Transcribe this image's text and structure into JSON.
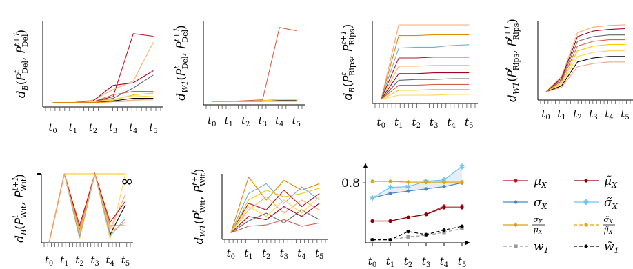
{
  "chart_data": [
    {
      "type": "line",
      "ylabel": "d_B(P^t_Del, P^{t+1}_Del)",
      "ylabel_parts": {
        "fn": "d",
        "sub": "B",
        "sym": "P",
        "name": "Del",
        "t0": "t",
        "t1": "t+1"
      },
      "x": [
        "t0",
        "t1",
        "t2",
        "t3",
        "t4",
        "t5"
      ],
      "ylim": [
        0,
        1
      ],
      "series": [
        {
          "values": [
            0.05,
            0.05,
            0.06,
            0.12,
            0.85,
            0.82
          ]
        },
        {
          "values": [
            0.05,
            0.05,
            0.08,
            0.2,
            0.3,
            0.75
          ]
        },
        {
          "values": [
            0.05,
            0.05,
            0.07,
            0.25,
            0.28,
            0.42
          ]
        },
        {
          "values": [
            0.05,
            0.05,
            0.06,
            0.1,
            0.22,
            0.37
          ]
        },
        {
          "values": [
            0.05,
            0.05,
            0.06,
            0.14,
            0.18,
            0.18
          ]
        },
        {
          "values": [
            0.05,
            0.05,
            0.05,
            0.08,
            0.14,
            0.16
          ]
        },
        {
          "values": [
            0.05,
            0.05,
            0.06,
            0.09,
            0.13,
            0.12
          ]
        },
        {
          "values": [
            0.05,
            0.05,
            0.05,
            0.07,
            0.1,
            0.1
          ]
        },
        {
          "values": [
            0.05,
            0.05,
            0.05,
            0.06,
            0.08,
            0.09
          ]
        },
        {
          "values": [
            0.05,
            0.05,
            0.05,
            0.06,
            0.07,
            0.07
          ]
        }
      ]
    },
    {
      "type": "line",
      "ylabel": "d_W1(P^t_Del, P^{t+1}_Del)",
      "ylabel_parts": {
        "fn": "d",
        "sub": "W1",
        "sym": "P",
        "name": "Del",
        "t0": "t",
        "t1": "t+1"
      },
      "x": [
        "t0",
        "t1",
        "t2",
        "t3",
        "t4",
        "t5"
      ],
      "ylim": [
        0,
        1
      ],
      "series": [
        {
          "values": [
            0.04,
            0.04,
            0.05,
            0.06,
            0.92,
            0.88
          ]
        },
        {
          "values": [
            0.04,
            0.04,
            0.04,
            0.05,
            0.07,
            0.06
          ]
        },
        {
          "values": [
            0.04,
            0.04,
            0.04,
            0.04,
            0.06,
            0.06
          ]
        },
        {
          "values": [
            0.04,
            0.04,
            0.04,
            0.04,
            0.05,
            0.05
          ]
        },
        {
          "values": [
            0.04,
            0.04,
            0.04,
            0.04,
            0.04,
            0.04
          ]
        }
      ]
    },
    {
      "type": "line",
      "ylabel": "d_B(P^t_Rips, P^{t+1}_Rips)",
      "ylabel_parts": {
        "fn": "d",
        "sub": "B",
        "sym": "P",
        "name": "Rips",
        "t0": "t",
        "t1": "t+1"
      },
      "x": [
        "t0",
        "t1",
        "t2",
        "t3",
        "t4",
        "t5"
      ],
      "ylim": [
        0,
        1
      ],
      "series": [
        {
          "values": [
            0.05,
            0.95,
            0.95,
            0.95,
            0.95,
            0.95
          ]
        },
        {
          "values": [
            0.05,
            0.82,
            0.82,
            0.83,
            0.83,
            0.83
          ]
        },
        {
          "values": [
            0.05,
            0.67,
            0.68,
            0.68,
            0.7,
            0.71
          ]
        },
        {
          "values": [
            0.05,
            0.55,
            0.55,
            0.56,
            0.56,
            0.56
          ]
        },
        {
          "values": [
            0.05,
            0.45,
            0.45,
            0.46,
            0.46,
            0.46
          ]
        },
        {
          "values": [
            0.05,
            0.36,
            0.36,
            0.37,
            0.37,
            0.37
          ]
        },
        {
          "values": [
            0.05,
            0.28,
            0.29,
            0.29,
            0.3,
            0.3
          ]
        },
        {
          "values": [
            0.05,
            0.22,
            0.22,
            0.23,
            0.23,
            0.23
          ]
        },
        {
          "values": [
            0.05,
            0.16,
            0.16,
            0.17,
            0.17,
            0.17
          ]
        },
        {
          "values": [
            0.05,
            0.1,
            0.1,
            0.1,
            0.11,
            0.11
          ]
        }
      ]
    },
    {
      "type": "line",
      "ylabel": "d_W1(P^t_Rips, P^{t+1}_Rips)",
      "ylabel_parts": {
        "fn": "d",
        "sub": "W1",
        "sym": "P",
        "name": "Rips",
        "t0": "t",
        "t1": "t+1"
      },
      "x": [
        "t0",
        "t1",
        "t2",
        "t3",
        "t4",
        "t5"
      ],
      "ylim": [
        0,
        1
      ],
      "series": [
        {
          "values": [
            0.1,
            0.3,
            0.85,
            0.92,
            0.94,
            0.95
          ]
        },
        {
          "values": [
            0.1,
            0.28,
            0.8,
            0.87,
            0.89,
            0.9
          ]
        },
        {
          "values": [
            0.1,
            0.26,
            0.74,
            0.8,
            0.82,
            0.82
          ]
        },
        {
          "values": [
            0.1,
            0.24,
            0.68,
            0.74,
            0.76,
            0.76
          ]
        },
        {
          "values": [
            0.1,
            0.22,
            0.62,
            0.68,
            0.7,
            0.7
          ]
        },
        {
          "values": [
            0.1,
            0.2,
            0.55,
            0.6,
            0.62,
            0.62
          ]
        },
        {
          "values": [
            0.1,
            0.18,
            0.48,
            0.53,
            0.55,
            0.55
          ]
        },
        {
          "values": [
            0.1,
            0.16,
            0.42,
            0.46,
            0.48,
            0.48
          ]
        }
      ]
    },
    {
      "type": "line",
      "ylabel": "d_B(P^t_Wit, P^{t+1}_Wit)",
      "ylabel_parts": {
        "fn": "d",
        "sub": "B",
        "sym": "P",
        "name": "Wit",
        "t0": "t",
        "t1": "t+1"
      },
      "annotation": "∞",
      "x": [
        "t0",
        "t1",
        "t2",
        "t3",
        "t4",
        "t5"
      ],
      "ylim": [
        0,
        1
      ],
      "series": [
        {
          "values": [
            0.0,
            1.0,
            1.0,
            1.0,
            1.0,
            1.0
          ]
        },
        {
          "values": [
            0.0,
            1.0,
            0.05,
            1.0,
            0.05,
            1.0
          ]
        },
        {
          "values": [
            0.0,
            1.0,
            0.1,
            1.0,
            0.12,
            0.55
          ]
        },
        {
          "values": [
            0.0,
            1.0,
            0.15,
            1.0,
            0.2,
            0.7
          ]
        },
        {
          "values": [
            0.0,
            1.0,
            0.2,
            1.0,
            0.25,
            0.25
          ]
        },
        {
          "values": [
            0.0,
            1.0,
            0.08,
            1.0,
            0.1,
            0.35
          ]
        },
        {
          "values": [
            0.0,
            1.0,
            0.25,
            1.0,
            0.3,
            0.6
          ]
        },
        {
          "values": [
            0.0,
            1.0,
            0.12,
            1.0,
            0.15,
            0.3
          ]
        }
      ]
    },
    {
      "type": "line",
      "ylabel": "d_W1(P^t_Wit, P^{t+1}_Wit)",
      "ylabel_parts": {
        "fn": "d",
        "sub": "W1",
        "sym": "P",
        "name": "Wit",
        "t0": "t",
        "t1": "t+1"
      },
      "x": [
        "t0",
        "t1",
        "t2",
        "t3",
        "t4",
        "t5"
      ],
      "ylim": [
        0,
        1
      ],
      "series": [
        {
          "values": [
            0.1,
            0.95,
            0.6,
            0.9,
            0.75,
            0.85
          ]
        },
        {
          "values": [
            0.1,
            0.7,
            0.85,
            0.55,
            0.8,
            0.6
          ]
        },
        {
          "values": [
            0.1,
            0.55,
            0.45,
            0.75,
            0.5,
            0.7
          ]
        },
        {
          "values": [
            0.1,
            0.45,
            0.65,
            0.4,
            0.6,
            0.45
          ]
        },
        {
          "values": [
            0.1,
            0.35,
            0.3,
            0.5,
            0.35,
            0.55
          ]
        },
        {
          "values": [
            0.1,
            0.28,
            0.4,
            0.25,
            0.45,
            0.3
          ]
        },
        {
          "values": [
            0.1,
            0.2,
            0.22,
            0.3,
            0.2,
            0.25
          ]
        },
        {
          "values": [
            0.1,
            0.6,
            0.75,
            0.65,
            0.7,
            0.78
          ]
        },
        {
          "values": [
            0.1,
            0.5,
            0.35,
            0.6,
            0.4,
            0.65
          ]
        }
      ]
    },
    {
      "type": "line",
      "x": [
        "t0",
        "t1",
        "t2",
        "t3",
        "t4",
        "t5"
      ],
      "ylim": [
        0,
        1.05
      ],
      "yticks": [
        0.8
      ],
      "series": [
        {
          "name": "μX",
          "values": [
            0.29,
            0.29,
            0.34,
            0.38,
            0.49,
            0.49
          ]
        },
        {
          "name": "μ̃X",
          "values": [
            0.29,
            0.29,
            0.34,
            0.38,
            0.47,
            0.47
          ]
        },
        {
          "name": "σX",
          "values": [
            0.6,
            0.66,
            0.69,
            0.72,
            0.75,
            0.8
          ]
        },
        {
          "name": "σ̃X",
          "values": [
            0.6,
            0.74,
            0.75,
            0.82,
            0.84,
            1.02
          ]
        },
        {
          "name": "σX/μX",
          "values": [
            0.82,
            0.82,
            0.81,
            0.81,
            0.81,
            0.81
          ]
        },
        {
          "name": "σ̃X/μ̃X",
          "values": [
            0.82,
            0.82,
            0.81,
            0.81,
            0.81,
            0.81
          ]
        },
        {
          "name": "w1",
          "values": [
            0.04,
            0.04,
            0.08,
            0.1,
            0.14,
            0.19
          ]
        },
        {
          "name": "w̃1",
          "values": [
            0.04,
            0.04,
            0.15,
            0.11,
            0.17,
            0.22
          ]
        }
      ]
    }
  ],
  "legend": [
    {
      "label": "μX",
      "base": "μ",
      "sub": "X",
      "color": "#b2182b",
      "marker": "circle",
      "dash": false
    },
    {
      "label": "μ̃X",
      "base": "μ̃",
      "sub": "X",
      "color": "#8b0000",
      "marker": "circle",
      "dash": false
    },
    {
      "label": "σX",
      "base": "σ",
      "sub": "X",
      "color": "#4a86c5",
      "marker": "circle",
      "dash": false
    },
    {
      "label": "σ̃X",
      "base": "σ̃",
      "sub": "X",
      "color": "#6ec3ef",
      "marker": "star",
      "dash": false
    },
    {
      "label": "σX/μX",
      "num": "σX",
      "den": "μX",
      "color": "#d4a017",
      "marker": "diamond",
      "dash": false
    },
    {
      "label": "σ̃X/μ̃X",
      "num": "σ̃X",
      "den": "μ̃X",
      "color": "#e6a700",
      "marker": "circle",
      "dash": true
    },
    {
      "label": "w1",
      "base": "w",
      "sub": "1",
      "color": "#999999",
      "marker": "square",
      "dash": true
    },
    {
      "label": "w̃1",
      "base": "w̃",
      "sub": "1",
      "color": "#000000",
      "marker": "circle",
      "dash": true
    }
  ],
  "colors": {
    "palette": [
      "#b2182b",
      "#d6604d",
      "#f4a582",
      "#fdae61",
      "#f7c600",
      "#e08a00",
      "#a50026",
      "#ffd54f",
      "#74add1",
      "#666666",
      "#000000"
    ],
    "band": "#e6edf5"
  }
}
